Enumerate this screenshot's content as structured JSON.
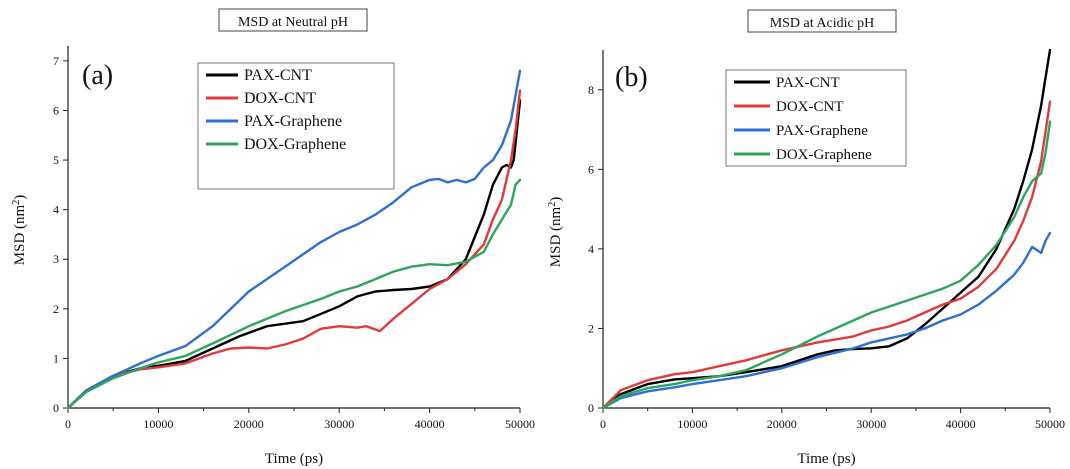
{
  "chart_data": [
    {
      "type": "line",
      "title": "MSD at Neutral pH",
      "panel_label": "(a)",
      "xlabel": "Time (ps)",
      "ylabel_main": "MSD (nm",
      "ylabel_sup": "2",
      "ylabel_end": ")",
      "xlim": [
        0,
        50000
      ],
      "ylim": [
        0,
        7.3
      ],
      "xticks": [
        0,
        10000,
        20000,
        30000,
        40000,
        50000
      ],
      "yticks": [
        0,
        1,
        2,
        3,
        4,
        5,
        6,
        7
      ],
      "legend_position": "top-center",
      "series": [
        {
          "name": "PAX-CNT",
          "color": "#000000",
          "x": [
            0,
            2000,
            5000,
            8000,
            10000,
            13000,
            16000,
            19000,
            22000,
            24000,
            26000,
            28000,
            30000,
            32000,
            34000,
            36000,
            38000,
            40000,
            42000,
            44000,
            46000,
            47000,
            48000,
            48500,
            49000,
            49300,
            49600,
            50000
          ],
          "y": [
            0,
            0.35,
            0.65,
            0.8,
            0.85,
            0.95,
            1.2,
            1.45,
            1.65,
            1.7,
            1.75,
            1.9,
            2.05,
            2.25,
            2.35,
            2.38,
            2.4,
            2.45,
            2.6,
            3.0,
            3.9,
            4.5,
            4.85,
            4.9,
            4.85,
            5.0,
            5.5,
            6.2
          ]
        },
        {
          "name": "DOX-CNT",
          "color": "#e03a3a",
          "x": [
            0,
            2000,
            5000,
            8000,
            10000,
            13000,
            16000,
            18000,
            20000,
            22000,
            24000,
            26000,
            28000,
            30000,
            32000,
            33000,
            34500,
            36000,
            38000,
            40000,
            42000,
            44000,
            46000,
            47000,
            48000,
            49000,
            49500,
            50000
          ],
          "y": [
            0,
            0.35,
            0.65,
            0.78,
            0.82,
            0.9,
            1.1,
            1.2,
            1.22,
            1.2,
            1.28,
            1.4,
            1.6,
            1.65,
            1.62,
            1.65,
            1.55,
            1.8,
            2.1,
            2.4,
            2.6,
            2.9,
            3.3,
            3.8,
            4.2,
            5.0,
            5.6,
            6.4
          ]
        },
        {
          "name": "PAX-Graphene",
          "color": "#2f6fd1",
          "x": [
            0,
            2000,
            5000,
            8000,
            10000,
            13000,
            16000,
            20000,
            24000,
            28000,
            30000,
            32000,
            34000,
            36000,
            38000,
            40000,
            41000,
            42000,
            43000,
            44000,
            45000,
            46000,
            47000,
            48000,
            49000,
            49500,
            50000
          ],
          "y": [
            0,
            0.35,
            0.65,
            0.9,
            1.05,
            1.25,
            1.65,
            2.35,
            2.85,
            3.35,
            3.55,
            3.7,
            3.9,
            4.15,
            4.45,
            4.6,
            4.62,
            4.55,
            4.6,
            4.55,
            4.62,
            4.85,
            5.0,
            5.3,
            5.8,
            6.3,
            6.8
          ]
        },
        {
          "name": "DOX-Graphene",
          "color": "#2ea55a",
          "x": [
            0,
            2000,
            5000,
            8000,
            10000,
            13000,
            16000,
            20000,
            24000,
            28000,
            30000,
            32000,
            34000,
            36000,
            38000,
            40000,
            42000,
            44000,
            46000,
            47000,
            48000,
            49000,
            49500,
            50000
          ],
          "y": [
            0,
            0.32,
            0.6,
            0.8,
            0.92,
            1.05,
            1.3,
            1.65,
            1.95,
            2.2,
            2.35,
            2.45,
            2.6,
            2.75,
            2.85,
            2.9,
            2.88,
            2.95,
            3.15,
            3.5,
            3.8,
            4.1,
            4.5,
            4.6
          ]
        }
      ]
    },
    {
      "type": "line",
      "title": "MSD at Acidic pH",
      "panel_label": "(b)",
      "xlabel": "Time (ps)",
      "ylabel_main": "MSD (nm",
      "ylabel_sup": "2",
      "ylabel_end": ")",
      "xlim": [
        0,
        50000
      ],
      "ylim": [
        0,
        9
      ],
      "xticks": [
        0,
        10000,
        20000,
        30000,
        40000,
        50000
      ],
      "yticks": [
        0,
        2,
        4,
        6,
        8
      ],
      "legend_position": "top-center",
      "series": [
        {
          "name": "PAX-CNT",
          "color": "#000000",
          "x": [
            0,
            2000,
            5000,
            8000,
            10000,
            13000,
            16000,
            20000,
            24000,
            26000,
            28000,
            30000,
            32000,
            34000,
            36000,
            38000,
            40000,
            42000,
            44000,
            45000,
            46000,
            47000,
            48000,
            49000,
            49500,
            50000
          ],
          "y": [
            0,
            0.35,
            0.6,
            0.72,
            0.75,
            0.8,
            0.9,
            1.05,
            1.35,
            1.45,
            1.48,
            1.5,
            1.55,
            1.75,
            2.1,
            2.5,
            2.9,
            3.3,
            4.0,
            4.5,
            5.0,
            5.7,
            6.5,
            7.6,
            8.3,
            9.0
          ]
        },
        {
          "name": "DOX-CNT",
          "color": "#e03a3a",
          "x": [
            0,
            2000,
            5000,
            8000,
            10000,
            13000,
            16000,
            20000,
            24000,
            28000,
            30000,
            32000,
            34000,
            36000,
            38000,
            40000,
            42000,
            44000,
            46000,
            47000,
            48000,
            49000,
            50000
          ],
          "y": [
            0,
            0.45,
            0.7,
            0.85,
            0.9,
            1.05,
            1.2,
            1.45,
            1.65,
            1.8,
            1.95,
            2.05,
            2.2,
            2.4,
            2.6,
            2.75,
            3.05,
            3.5,
            4.2,
            4.7,
            5.3,
            6.2,
            7.7
          ]
        },
        {
          "name": "PAX-Graphene",
          "color": "#2f6fd1",
          "x": [
            0,
            2000,
            5000,
            8000,
            10000,
            13000,
            16000,
            20000,
            24000,
            28000,
            30000,
            32000,
            34000,
            36000,
            38000,
            40000,
            42000,
            44000,
            46000,
            47000,
            48000,
            49000,
            49500,
            50000
          ],
          "y": [
            0,
            0.25,
            0.42,
            0.52,
            0.6,
            0.7,
            0.8,
            1.0,
            1.28,
            1.5,
            1.65,
            1.75,
            1.85,
            2.0,
            2.2,
            2.35,
            2.6,
            2.95,
            3.35,
            3.65,
            4.05,
            3.9,
            4.2,
            4.4
          ]
        },
        {
          "name": "DOX-Graphene",
          "color": "#2ea55a",
          "x": [
            0,
            2000,
            5000,
            8000,
            10000,
            13000,
            16000,
            20000,
            24000,
            28000,
            30000,
            32000,
            34000,
            36000,
            38000,
            40000,
            42000,
            44000,
            46000,
            47000,
            48000,
            49000,
            49500,
            50000
          ],
          "y": [
            0,
            0.3,
            0.5,
            0.6,
            0.7,
            0.8,
            0.95,
            1.35,
            1.8,
            2.2,
            2.4,
            2.55,
            2.7,
            2.85,
            3.0,
            3.2,
            3.6,
            4.1,
            4.8,
            5.3,
            5.7,
            5.9,
            6.4,
            7.2
          ]
        }
      ]
    }
  ]
}
